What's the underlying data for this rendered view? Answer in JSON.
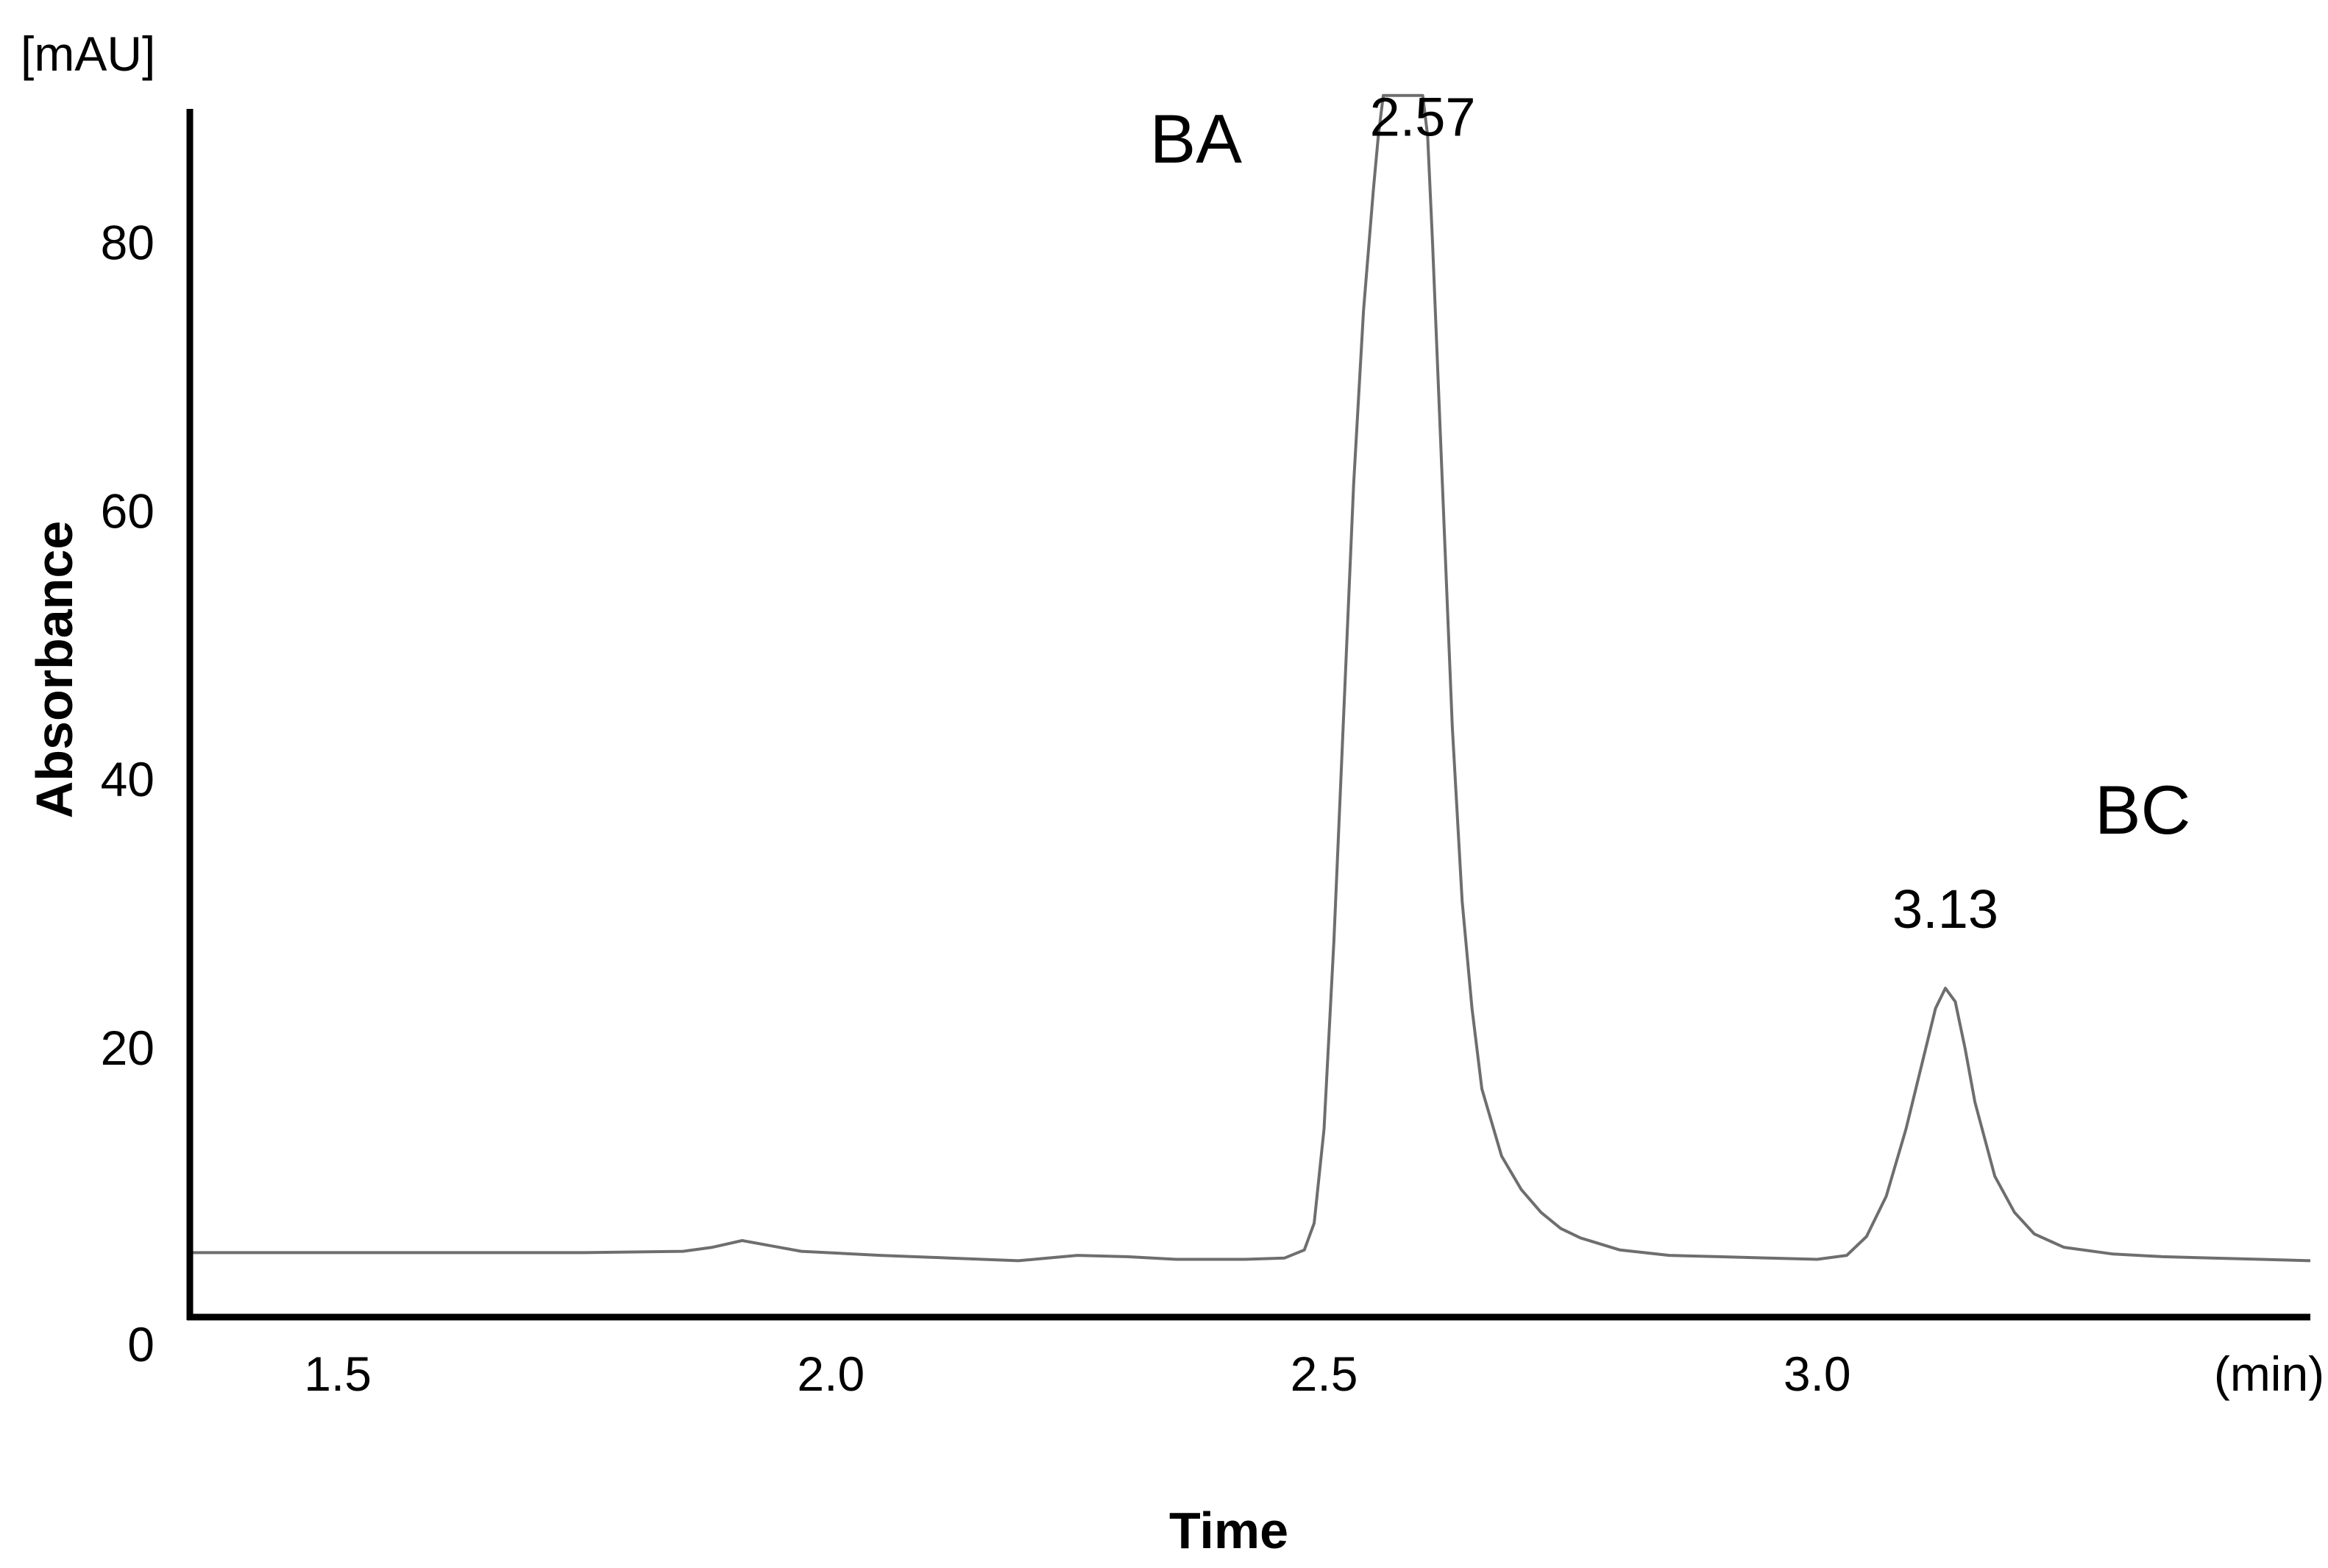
{
  "chart_data": {
    "type": "line",
    "title": "",
    "xlabel": "Time",
    "ylabel": "Absorbance",
    "y_unit_label": "[mAU]",
    "x_unit_label": "(min)",
    "xlim": [
      1.35,
      3.5
    ],
    "ylim": [
      0,
      90
    ],
    "x_ticks": [
      {
        "value": 1.5,
        "label": "1.5"
      },
      {
        "value": 2.0,
        "label": "2.0"
      },
      {
        "value": 2.5,
        "label": "2.5"
      },
      {
        "value": 3.0,
        "label": "3.0"
      }
    ],
    "y_ticks": [
      {
        "value": 0,
        "label": "0"
      },
      {
        "value": 20,
        "label": "20"
      },
      {
        "value": 40,
        "label": "40"
      },
      {
        "value": 60,
        "label": "60"
      },
      {
        "value": 80,
        "label": "80"
      }
    ],
    "grid": false,
    "legend": "none",
    "line_color": "#6e6e6e",
    "series": [
      {
        "x": [
          1.35,
          1.45,
          1.55,
          1.65,
          1.75,
          1.85,
          1.88,
          1.91,
          1.94,
          1.97,
          2.05,
          2.12,
          2.19,
          2.22,
          2.25,
          2.3,
          2.35,
          2.42,
          2.46,
          2.48,
          2.49,
          2.5,
          2.51,
          2.52,
          2.53,
          2.54,
          2.55,
          2.555,
          2.56,
          2.6,
          2.605,
          2.61,
          2.62,
          2.63,
          2.64,
          2.65,
          2.66,
          2.68,
          2.7,
          2.72,
          2.74,
          2.76,
          2.8,
          2.85,
          2.9,
          2.95,
          3.0,
          3.03,
          3.05,
          3.07,
          3.09,
          3.11,
          3.12,
          3.13,
          3.14,
          3.15,
          3.16,
          3.18,
          3.2,
          3.22,
          3.25,
          3.3,
          3.35,
          3.4,
          3.45,
          3.5
        ],
        "y": [
          4.8,
          4.8,
          4.8,
          4.8,
          4.8,
          4.9,
          5.2,
          5.7,
          5.3,
          4.9,
          4.6,
          4.4,
          4.2,
          4.4,
          4.6,
          4.5,
          4.3,
          4.3,
          4.4,
          5.0,
          7.0,
          14,
          28,
          45,
          62,
          75,
          84,
          88,
          91,
          91,
          88,
          80,
          62,
          44,
          31,
          23,
          17,
          12,
          9.5,
          7.8,
          6.6,
          5.9,
          5.0,
          4.6,
          4.5,
          4.4,
          4.3,
          4.6,
          6.0,
          9.0,
          14,
          20,
          23,
          24.5,
          23.5,
          20,
          16,
          10.5,
          7.8,
          6.2,
          5.2,
          4.7,
          4.5,
          4.4,
          4.3,
          4.2
        ]
      }
    ],
    "annotations": [
      {
        "text": "BA",
        "x": 2.37,
        "y": 86,
        "kind": "peak-name"
      },
      {
        "text": "2.57",
        "x": 2.6,
        "y": 88,
        "kind": "peak-time"
      },
      {
        "text": "3.13",
        "x": 3.13,
        "y": 29,
        "kind": "peak-time"
      },
      {
        "text": "BC",
        "x": 3.33,
        "y": 36,
        "kind": "peak-name"
      }
    ]
  }
}
